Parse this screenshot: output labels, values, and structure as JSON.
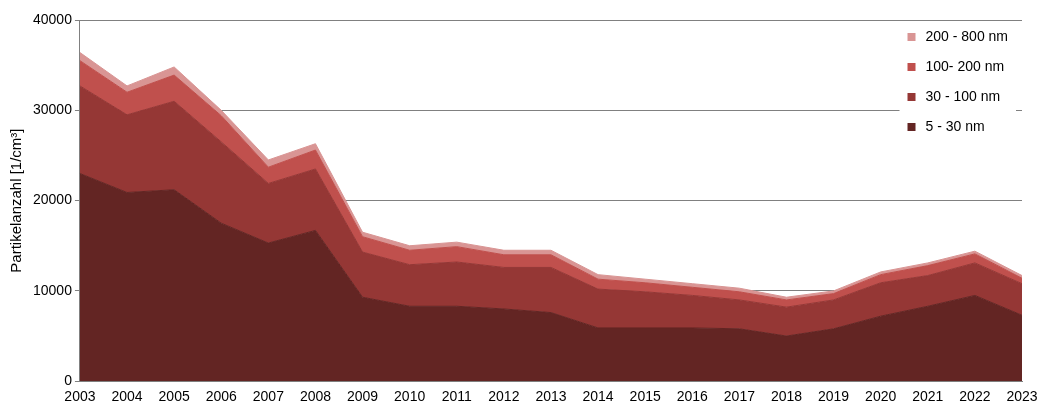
{
  "chart_data": {
    "type": "area",
    "stacked": true,
    "grid": true,
    "legend": "upper right",
    "y_label": "Partikelanzahl [1/cm³]",
    "categories": [
      "2003",
      "2004",
      "2005",
      "2006",
      "2007",
      "2008",
      "2009",
      "2010",
      "2011",
      "2012",
      "2013",
      "2014",
      "2015",
      "2016",
      "2017",
      "2018",
      "2019",
      "2020",
      "2021",
      "2022",
      "2023"
    ],
    "ylim": [
      0,
      40000
    ],
    "yticks": [
      0,
      10000,
      20000,
      30000,
      40000
    ],
    "series": [
      {
        "name": "5 - 30 nm",
        "color": "#632523",
        "values": [
          23000,
          20900,
          21200,
          17500,
          15300,
          16700,
          9300,
          8300,
          8300,
          8000,
          7600,
          5900,
          5900,
          5900,
          5800,
          5000,
          5800,
          7200,
          8300,
          9500,
          7300
        ]
      },
      {
        "name": "30 - 100 nm",
        "color": "#953735",
        "values": [
          9700,
          8600,
          9800,
          9000,
          6600,
          6800,
          5000,
          4600,
          4900,
          4600,
          5000,
          4300,
          4000,
          3600,
          3200,
          3200,
          3200,
          3700,
          3400,
          3600,
          3500
        ]
      },
      {
        "name": "100- 200 nm",
        "color": "#c0504d",
        "values": [
          2800,
          2500,
          2900,
          2900,
          1800,
          2100,
          1700,
          1600,
          1700,
          1400,
          1400,
          1100,
          1000,
          900,
          900,
          800,
          700,
          900,
          1100,
          1000,
          600
        ]
      },
      {
        "name": "200 - 800 nm",
        "color": "#d99594",
        "values": [
          900,
          700,
          900,
          600,
          800,
          700,
          500,
          500,
          500,
          500,
          500,
          500,
          400,
          400,
          400,
          300,
          300,
          300,
          300,
          300,
          300
        ]
      }
    ]
  }
}
